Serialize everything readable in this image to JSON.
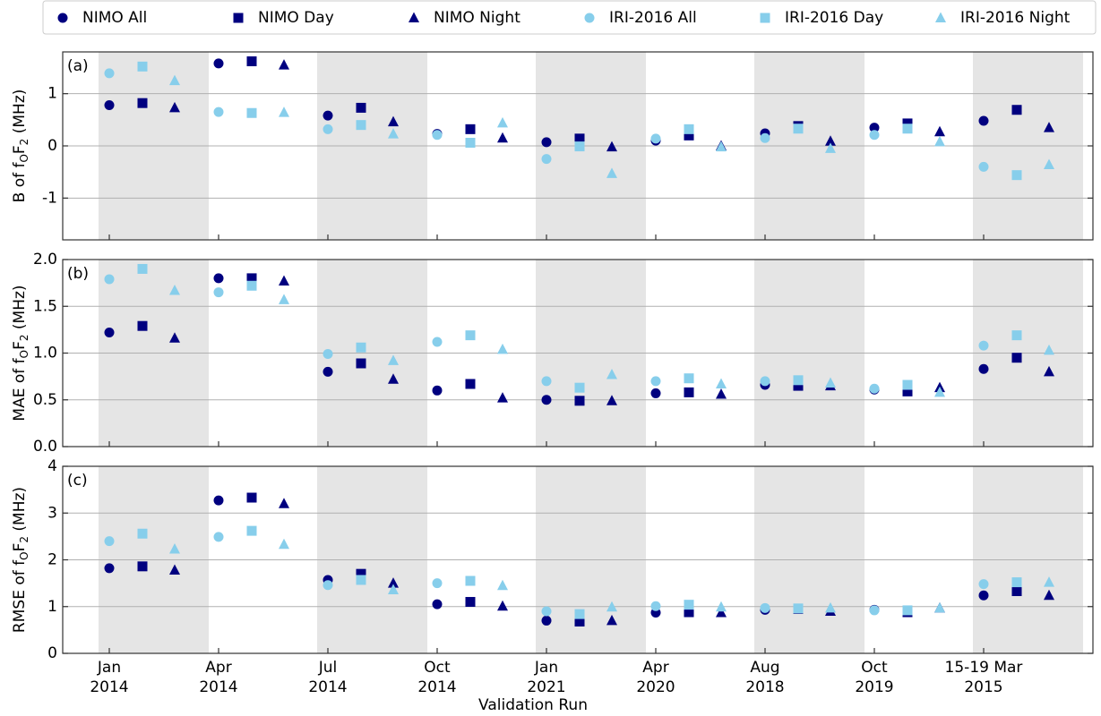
{
  "chart_data": [
    {
      "type": "dot",
      "panel_label": "(a)",
      "y_label": "B of fOF2 (MHz)",
      "ylim": [
        -1.8,
        1.8
      ],
      "yticks": [
        -1,
        0,
        1
      ],
      "grid": true,
      "shading": "alternate",
      "series": [
        {
          "name": "NIMO All",
          "color": "#00007f",
          "marker": "circle",
          "values": [
            0.78,
            1.58,
            0.58,
            0.23,
            0.07,
            0.1,
            0.24,
            0.35,
            0.48
          ]
        },
        {
          "name": "NIMO Day",
          "color": "#00007f",
          "marker": "square",
          "values": [
            0.82,
            1.62,
            0.73,
            0.32,
            0.14,
            0.2,
            0.38,
            0.43,
            0.69
          ]
        },
        {
          "name": "NIMO Night",
          "color": "#00007f",
          "marker": "triangle",
          "values": [
            0.73,
            1.55,
            0.46,
            0.15,
            -0.02,
            0.0,
            0.09,
            0.27,
            0.35
          ]
        },
        {
          "name": "IRI-2016 All",
          "color": "#87ceeb",
          "marker": "circle",
          "values": [
            1.39,
            0.65,
            0.32,
            0.21,
            -0.25,
            0.14,
            0.15,
            0.21,
            -0.4
          ]
        },
        {
          "name": "IRI-2016 Day",
          "color": "#87ceeb",
          "marker": "square",
          "values": [
            1.52,
            0.63,
            0.4,
            0.06,
            -0.01,
            0.32,
            0.33,
            0.33,
            -0.56
          ]
        },
        {
          "name": "IRI-2016 Night",
          "color": "#87ceeb",
          "marker": "triangle",
          "values": [
            1.25,
            0.64,
            0.23,
            0.44,
            -0.53,
            -0.02,
            -0.05,
            0.08,
            -0.36
          ]
        }
      ]
    },
    {
      "type": "dot",
      "panel_label": "(b)",
      "y_label": "MAE of fOF2 (MHz)",
      "ylim": [
        0,
        2
      ],
      "yticks": [
        {
          "value": 0,
          "label": "0.0"
        },
        {
          "value": 0.5,
          "label": "0.5"
        },
        {
          "value": 1,
          "label": "1.0"
        },
        {
          "value": 1.5,
          "label": "1.5"
        },
        {
          "value": 2,
          "label": "2.0"
        }
      ],
      "grid": true,
      "shading": "alternate",
      "series": [
        {
          "name": "NIMO All",
          "color": "#00007f",
          "marker": "circle",
          "values": [
            1.22,
            1.8,
            0.8,
            0.6,
            0.5,
            0.57,
            0.66,
            0.61,
            0.83
          ]
        },
        {
          "name": "NIMO Day",
          "color": "#00007f",
          "marker": "square",
          "values": [
            1.29,
            1.8,
            0.89,
            0.67,
            0.49,
            0.58,
            0.65,
            0.59,
            0.95
          ]
        },
        {
          "name": "NIMO Night",
          "color": "#00007f",
          "marker": "triangle",
          "values": [
            1.16,
            1.77,
            0.72,
            0.52,
            0.49,
            0.56,
            0.65,
            0.63,
            0.8
          ]
        },
        {
          "name": "IRI-2016 All",
          "color": "#87ceeb",
          "marker": "circle",
          "values": [
            1.79,
            1.65,
            0.99,
            1.12,
            0.7,
            0.7,
            0.7,
            0.62,
            1.08
          ]
        },
        {
          "name": "IRI-2016 Day",
          "color": "#87ceeb",
          "marker": "square",
          "values": [
            1.9,
            1.72,
            1.06,
            1.19,
            0.63,
            0.73,
            0.71,
            0.66,
            1.19
          ]
        },
        {
          "name": "IRI-2016 Night",
          "color": "#87ceeb",
          "marker": "triangle",
          "values": [
            1.67,
            1.57,
            0.92,
            1.04,
            0.77,
            0.67,
            0.68,
            0.58,
            1.03
          ]
        }
      ]
    },
    {
      "type": "dot",
      "panel_label": "(c)",
      "y_label": "RMSE of fOF2 (MHz)",
      "x_label": "Validation Run",
      "categories": [
        "Jan 2014",
        "Apr 2014",
        "Jul 2014",
        "Oct 2014",
        "Jan 2021",
        "Apr 2020",
        "Aug 2018",
        "Oct 2019",
        "15-19 Mar 2015"
      ],
      "ylim": [
        0,
        4
      ],
      "yticks": [
        0,
        1,
        2,
        3,
        4
      ],
      "grid": true,
      "shading": "alternate",
      "series": [
        {
          "name": "NIMO All",
          "color": "#00007f",
          "marker": "circle",
          "values": [
            1.82,
            3.27,
            1.57,
            1.05,
            0.7,
            0.87,
            0.93,
            0.93,
            1.24
          ]
        },
        {
          "name": "NIMO Day",
          "color": "#00007f",
          "marker": "square",
          "values": [
            1.86,
            3.33,
            1.7,
            1.1,
            0.68,
            0.88,
            0.95,
            0.88,
            1.33
          ]
        },
        {
          "name": "NIMO Night",
          "color": "#00007f",
          "marker": "triangle",
          "values": [
            1.78,
            3.2,
            1.5,
            1.01,
            0.7,
            0.87,
            0.9,
            0.97,
            1.24
          ]
        },
        {
          "name": "IRI-2016 All",
          "color": "#87ceeb",
          "marker": "circle",
          "values": [
            2.4,
            2.49,
            1.46,
            1.5,
            0.9,
            1.01,
            0.97,
            0.92,
            1.48
          ]
        },
        {
          "name": "IRI-2016 Day",
          "color": "#87ceeb",
          "marker": "square",
          "values": [
            2.56,
            2.62,
            1.57,
            1.55,
            0.84,
            1.04,
            0.96,
            0.92,
            1.52
          ]
        },
        {
          "name": "IRI-2016 Night",
          "color": "#87ceeb",
          "marker": "triangle",
          "values": [
            2.23,
            2.33,
            1.36,
            1.45,
            0.99,
            0.99,
            0.97,
            0.97,
            1.52
          ]
        }
      ]
    }
  ]
}
